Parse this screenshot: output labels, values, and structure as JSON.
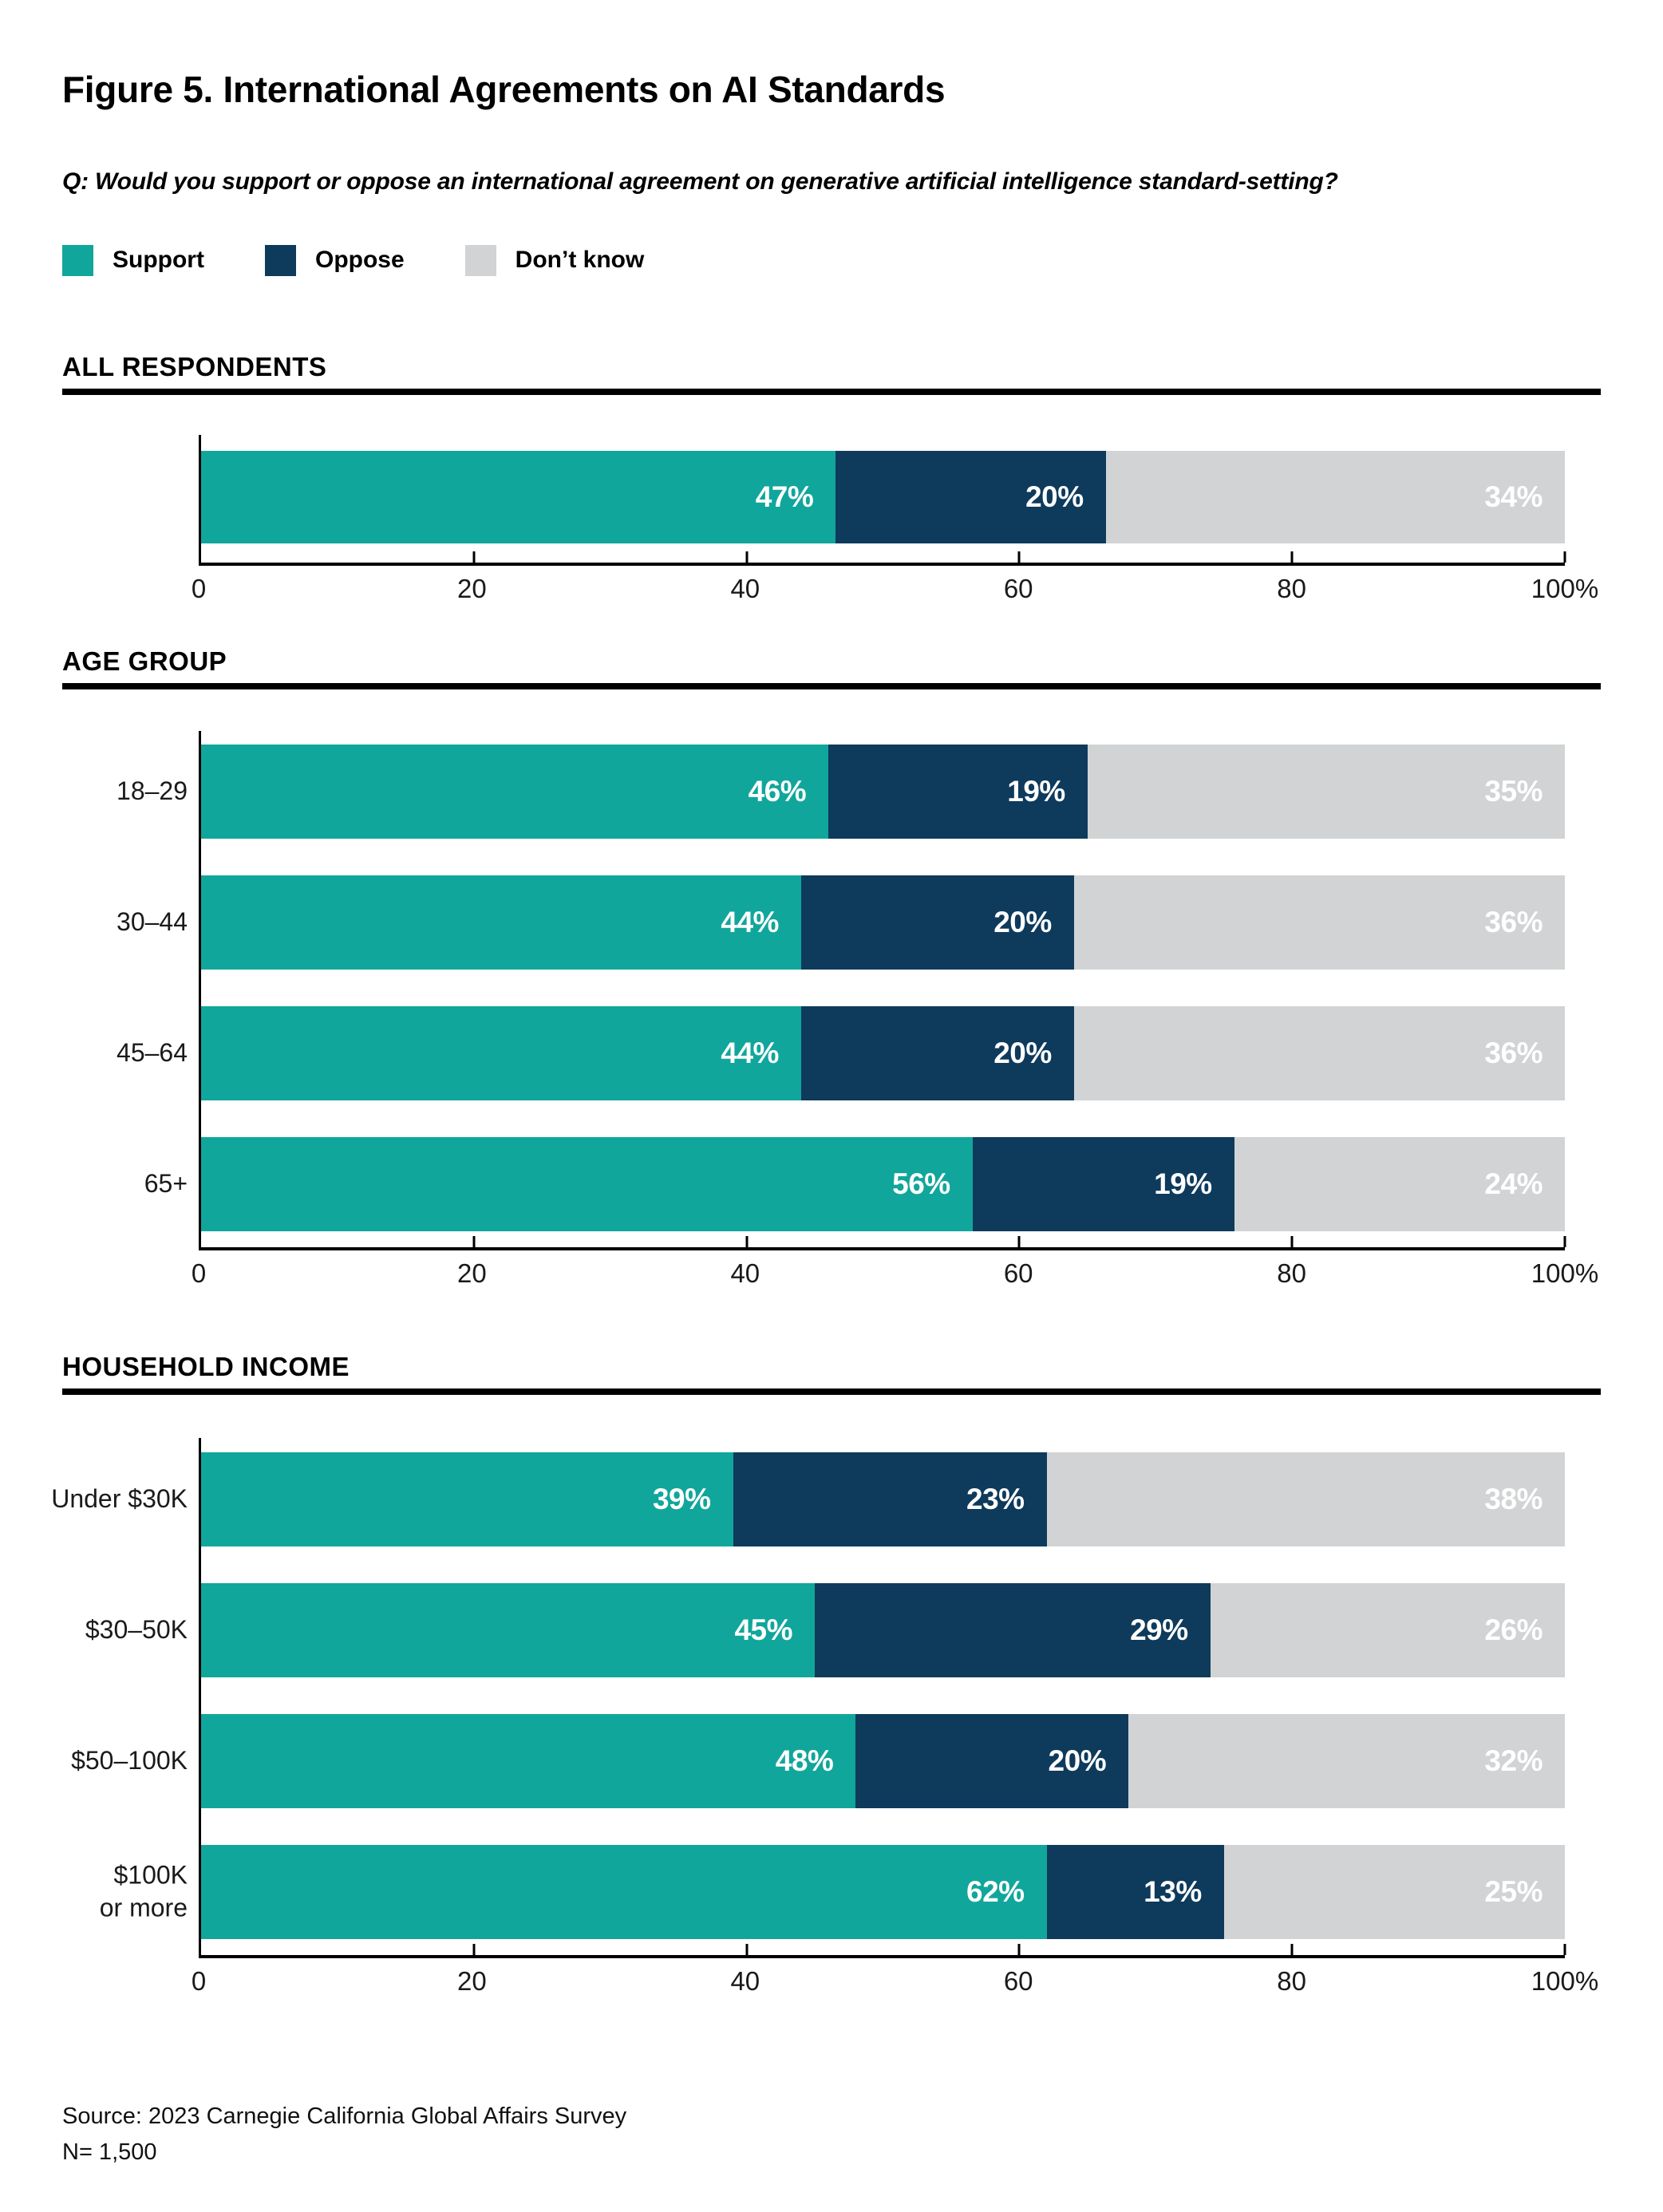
{
  "page": {
    "title": "Figure 5. International Agreements on AI Standards",
    "question": "Q: Would you support or oppose an international agreement on generative artificial intelligence standard-setting?",
    "source": [
      "Source: 2023 Carnegie California Global Affairs Survey",
      "N= 1,500"
    ]
  },
  "legend": [
    {
      "label": "Support",
      "color": "#11A69B"
    },
    {
      "label": "Oppose",
      "color": "#0E3A5C"
    },
    {
      "label": "Don’t know",
      "color": "#D1D3D4"
    }
  ],
  "chart_data": {
    "type": "bar",
    "orientation": "horizontal",
    "stacked": true,
    "value_unit": "%",
    "xlim": [
      0,
      100
    ],
    "x_ticks": [
      0,
      20,
      40,
      60,
      80,
      100
    ],
    "x_tick_labels": [
      "0",
      "20",
      "40",
      "60",
      "80",
      "100%"
    ],
    "series_names": [
      "Support",
      "Oppose",
      "Don’t know"
    ],
    "series_colors": [
      "#11A69B",
      "#0E3A5C",
      "#D1D3D4"
    ],
    "sections": [
      {
        "id": "all-respondents",
        "title": "ALL RESPONDENTS",
        "rows": [
          {
            "label_lines": [],
            "values": [
              47,
              20,
              34
            ]
          }
        ]
      },
      {
        "id": "age-group",
        "title": "AGE GROUP",
        "rows": [
          {
            "label_lines": [
              "18–29"
            ],
            "values": [
              46,
              19,
              35
            ]
          },
          {
            "label_lines": [
              "30–44"
            ],
            "values": [
              44,
              20,
              36
            ]
          },
          {
            "label_lines": [
              "45–64"
            ],
            "values": [
              44,
              20,
              36
            ]
          },
          {
            "label_lines": [
              "65+"
            ],
            "values": [
              56,
              19,
              24
            ]
          }
        ]
      },
      {
        "id": "household-income",
        "title": "HOUSEHOLD INCOME",
        "rows": [
          {
            "label_lines": [
              "Under $30K"
            ],
            "values": [
              39,
              23,
              38
            ]
          },
          {
            "label_lines": [
              "$30–50K"
            ],
            "values": [
              45,
              29,
              26
            ]
          },
          {
            "label_lines": [
              "$50–100K"
            ],
            "values": [
              48,
              20,
              32
            ]
          },
          {
            "label_lines": [
              "$100K",
              "or more"
            ],
            "values": [
              62,
              13,
              25
            ]
          }
        ]
      }
    ]
  }
}
